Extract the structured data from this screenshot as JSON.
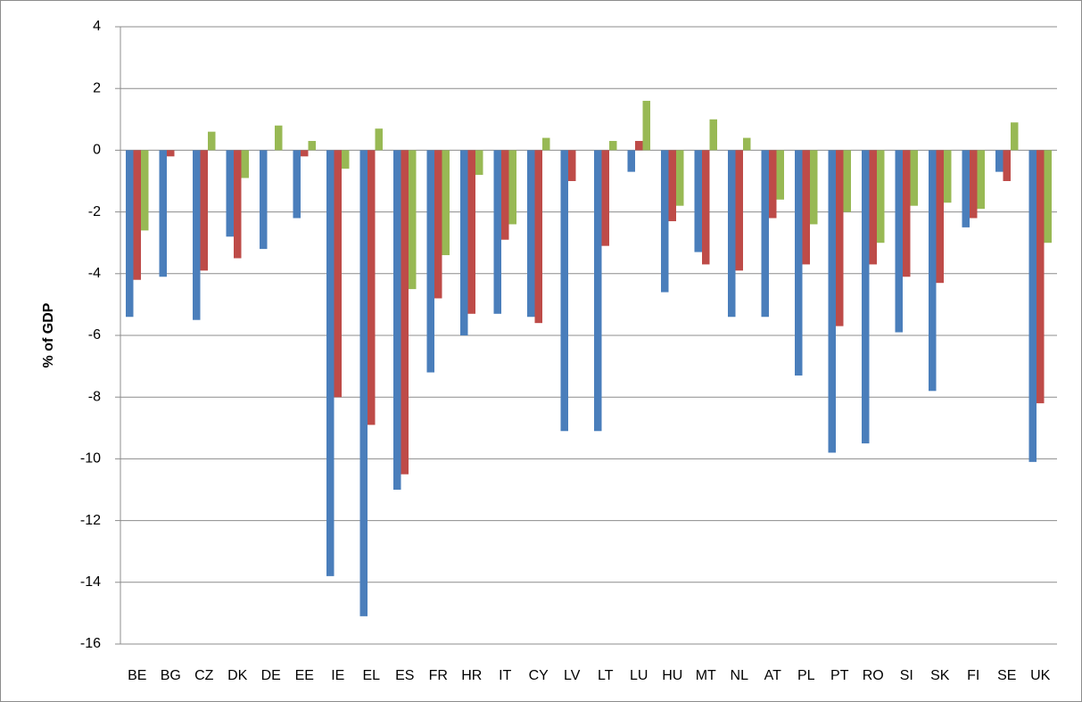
{
  "chart_data": {
    "type": "bar",
    "y_label": "% of GDP",
    "categories": [
      "BE",
      "BG",
      "CZ",
      "DK",
      "DE",
      "EE",
      "IE",
      "EL",
      "ES",
      "FR",
      "HR",
      "IT",
      "CY",
      "LV",
      "LT",
      "LU",
      "HU",
      "MT",
      "NL",
      "AT",
      "PL",
      "PT",
      "RO",
      "SI",
      "SK",
      "FI",
      "SE",
      "UK"
    ],
    "series": [
      {
        "color": "#4a7ebb",
        "values": [
          -5.4,
          -4.1,
          -5.5,
          -2.8,
          -3.2,
          -2.2,
          -13.8,
          -15.1,
          -11.0,
          -7.2,
          -6.0,
          -5.3,
          -5.4,
          -9.1,
          -9.1,
          -0.7,
          -4.6,
          -3.3,
          -5.4,
          -5.4,
          -7.3,
          -9.8,
          -9.5,
          -5.9,
          -7.8,
          -2.5,
          -0.7,
          -10.1
        ]
      },
      {
        "color": "#be4b48",
        "values": [
          -4.2,
          -0.2,
          -3.9,
          -3.5,
          null,
          -0.2,
          -8.0,
          -8.9,
          -10.5,
          -4.8,
          -5.3,
          -2.9,
          -5.6,
          -1.0,
          -3.1,
          0.3,
          -2.3,
          -3.7,
          -3.9,
          -2.2,
          -3.7,
          -5.7,
          -3.7,
          -4.1,
          -4.3,
          -2.2,
          -1.0,
          -8.2
        ]
      },
      {
        "color": "#98b954",
        "values": [
          -2.6,
          null,
          0.6,
          -0.9,
          0.8,
          0.3,
          -0.6,
          0.7,
          -4.5,
          -3.4,
          -0.8,
          -2.4,
          0.4,
          null,
          0.3,
          1.6,
          -1.8,
          1.0,
          0.4,
          -1.6,
          -2.4,
          -2.0,
          -3.0,
          -1.8,
          -1.7,
          -1.9,
          0.9,
          -3.0
        ]
      }
    ],
    "ylim": [
      -16,
      4
    ],
    "yticks": [
      -16,
      -14,
      -12,
      -10,
      -8,
      -6,
      -4,
      -2,
      0,
      2,
      4
    ],
    "grid": true
  }
}
